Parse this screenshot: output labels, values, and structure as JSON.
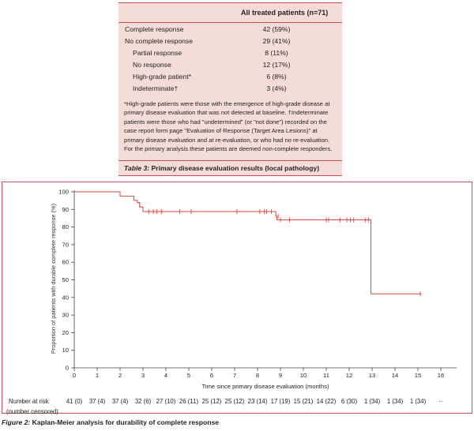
{
  "table": {
    "column_header": "All treated patients (n=71)",
    "rows": [
      {
        "label": "Complete response",
        "value": "42 (59%)",
        "indent": false
      },
      {
        "label": "No complete response",
        "value": "29 (41%)",
        "indent": false
      },
      {
        "label": "Partial response",
        "value": "8 (11%)",
        "indent": true
      },
      {
        "label": "No response",
        "value": "12 (17%)",
        "indent": true
      },
      {
        "label": "High-grade patient*",
        "value": "6 (8%)",
        "indent": true
      },
      {
        "label": "Indeterminate†",
        "value": "3 (4%)",
        "indent": true
      }
    ],
    "footnote": "*High-grade patients were those with the emergence of high-grade disease at primary disease evaluation that was not detected at baseline. †Indeterminate patients were those who had \"undetermined\" (or \"not done\") recorded on the case report form page \"Evaluation of Response (Target Area Lesions)\" at primary disease evaluation and at re-evaluation, or who had no re-evaluation. For the primary analysis these patients are deemed non-complete responders.",
    "caption_label": "Table 3:",
    "caption_text": " Primary disease evaluation results (local pathology)"
  },
  "chart_data": {
    "type": "line",
    "xlabel": "Time since primary disease evaluation (months)",
    "ylabel": "Proportion of patients with durable complete response (%)",
    "xlim": [
      0,
      16
    ],
    "ylim": [
      0,
      100
    ],
    "xticks": [
      0,
      1,
      2,
      3,
      4,
      5,
      6,
      7,
      8,
      9,
      10,
      11,
      12,
      13,
      14,
      15,
      16
    ],
    "yticks": [
      0,
      10,
      20,
      30,
      40,
      50,
      60,
      70,
      80,
      90,
      100
    ],
    "grid": false,
    "series": [
      {
        "color": "#d9453a",
        "steps": [
          [
            0,
            100
          ],
          [
            2.0,
            100
          ],
          [
            2.0,
            97.6
          ],
          [
            2.6,
            97.6
          ],
          [
            2.6,
            95.1
          ],
          [
            2.75,
            95.1
          ],
          [
            2.75,
            93.9
          ],
          [
            2.85,
            93.9
          ],
          [
            2.85,
            91.4
          ],
          [
            3.0,
            91.4
          ],
          [
            3.0,
            88.8
          ],
          [
            8.8,
            88.8
          ],
          [
            8.8,
            86.2
          ],
          [
            8.85,
            86.2
          ],
          [
            8.85,
            84.1
          ],
          [
            12.95,
            84.1
          ],
          [
            12.95,
            42.0
          ],
          [
            15.15,
            42.0
          ]
        ],
        "censor_marks": [
          [
            3.25,
            88.8
          ],
          [
            3.45,
            88.8
          ],
          [
            3.6,
            88.8
          ],
          [
            3.8,
            88.8
          ],
          [
            4.6,
            88.8
          ],
          [
            5.1,
            88.8
          ],
          [
            7.1,
            88.8
          ],
          [
            8.1,
            88.8
          ],
          [
            8.3,
            88.8
          ],
          [
            8.4,
            88.8
          ],
          [
            8.6,
            88.8
          ],
          [
            8.9,
            86.2
          ],
          [
            9.0,
            84.1
          ],
          [
            9.4,
            84.1
          ],
          [
            11.0,
            84.1
          ],
          [
            11.1,
            84.1
          ],
          [
            11.6,
            84.1
          ],
          [
            11.9,
            84.1
          ],
          [
            12.05,
            84.1
          ],
          [
            12.2,
            84.1
          ],
          [
            12.7,
            84.1
          ],
          [
            12.85,
            84.1
          ],
          [
            15.1,
            42.0
          ]
        ]
      }
    ],
    "risk_table": {
      "label_line1": "Number at risk",
      "label_line2": "(number censored)",
      "values": [
        "41 (0)",
        "37 (4)",
        "37 (4)",
        "32 (6)",
        "27 (10)",
        "26 (11)",
        "25 (12)",
        "25 (12)",
        "23 (14)",
        "17 (19)",
        "15 (21)",
        "14 (22)",
        "6 (30)",
        "1 (34)",
        "1 (34)",
        "1 (34)",
        "··"
      ]
    }
  },
  "figure_caption_label": "Figure 2:",
  "figure_caption_text": " Kaplan-Meier analysis for durability of complete response",
  "colors": {
    "accent": "#c2504a",
    "table_bg": "#f5dcd8",
    "curve": "#d9453a"
  }
}
